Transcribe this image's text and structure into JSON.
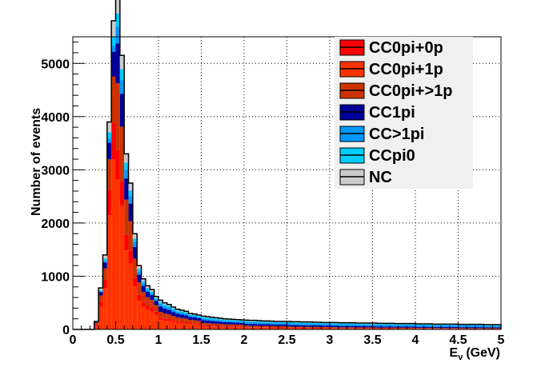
{
  "chart_data": {
    "type": "bar",
    "subtype": "stacked-histogram",
    "title": "",
    "xlabel": "E",
    "xlabel_subscript": "ν",
    "xlabel_unit": "(GeV)",
    "ylabel": "Number of events",
    "xlim": [
      0,
      5
    ],
    "ylim": [
      0,
      5500
    ],
    "grid": true,
    "legend_position": "top-right",
    "x_ticks": [
      "0",
      "0.5",
      "1",
      "1.5",
      "2",
      "2.5",
      "3",
      "3.5",
      "4",
      "4.5",
      "5"
    ],
    "y_ticks": [
      "0",
      "1000",
      "2000",
      "3000",
      "4000",
      "5000"
    ],
    "x_tick_values": [
      0,
      0.5,
      1,
      1.5,
      2,
      2.5,
      3,
      3.5,
      4,
      4.5,
      5
    ],
    "y_tick_values": [
      0,
      1000,
      2000,
      3000,
      4000,
      5000
    ],
    "bin_width": 0.05,
    "total": [
      0,
      0,
      0,
      0,
      0,
      150,
      780,
      1400,
      3900,
      5800,
      6250,
      5150,
      3300,
      2750,
      1800,
      1200,
      950,
      820,
      750,
      620,
      550,
      500,
      470,
      420,
      380,
      360,
      340,
      300,
      290,
      270,
      250,
      240,
      230,
      220,
      210,
      200,
      195,
      190,
      185,
      180,
      175,
      170,
      170,
      165,
      160,
      160,
      155,
      150,
      150,
      150,
      150,
      145,
      145,
      140,
      140,
      140,
      135,
      135,
      130,
      130,
      130,
      130,
      125,
      125,
      125,
      125,
      120,
      120,
      120,
      120,
      120,
      115,
      115,
      115,
      115,
      110,
      110,
      110,
      110,
      110,
      105,
      105,
      105,
      105,
      100,
      100,
      100,
      100,
      100,
      100,
      95,
      95,
      95,
      95,
      95,
      95,
      90,
      90,
      90,
      90
    ],
    "series": [
      {
        "name": "CC0pi+0p",
        "color": "#ff0000",
        "fractions": [
          0.12,
          0.09,
          0.07,
          0.06,
          0.05,
          0.05,
          0.05,
          0.05,
          0.05,
          0.05
        ]
      },
      {
        "name": "CC0pi+1p",
        "color": "#ff3300",
        "fractions": [
          0.55,
          0.45,
          0.33,
          0.25,
          0.2,
          0.17,
          0.15,
          0.13,
          0.12,
          0.11
        ]
      },
      {
        "name": "CC0pi+>1p",
        "color": "#cc3300",
        "fractions": [
          0.15,
          0.2,
          0.2,
          0.18,
          0.16,
          0.14,
          0.12,
          0.11,
          0.1,
          0.1
        ]
      },
      {
        "name": "CC1pi",
        "color": "#000099",
        "fractions": [
          0.08,
          0.12,
          0.18,
          0.2,
          0.2,
          0.2,
          0.2,
          0.2,
          0.2,
          0.2
        ]
      },
      {
        "name": "CC>1pi",
        "color": "#0099ff",
        "fractions": [
          0.02,
          0.05,
          0.1,
          0.15,
          0.2,
          0.24,
          0.27,
          0.3,
          0.32,
          0.33
        ]
      },
      {
        "name": "CCpi0",
        "color": "#00ccff",
        "fractions": [
          0.03,
          0.04,
          0.06,
          0.08,
          0.09,
          0.1,
          0.11,
          0.11,
          0.11,
          0.11
        ]
      },
      {
        "name": "NC",
        "color": "#cccccc",
        "fractions": [
          0.05,
          0.05,
          0.06,
          0.08,
          0.1,
          0.1,
          0.1,
          0.1,
          0.1,
          0.1
        ]
      }
    ]
  }
}
